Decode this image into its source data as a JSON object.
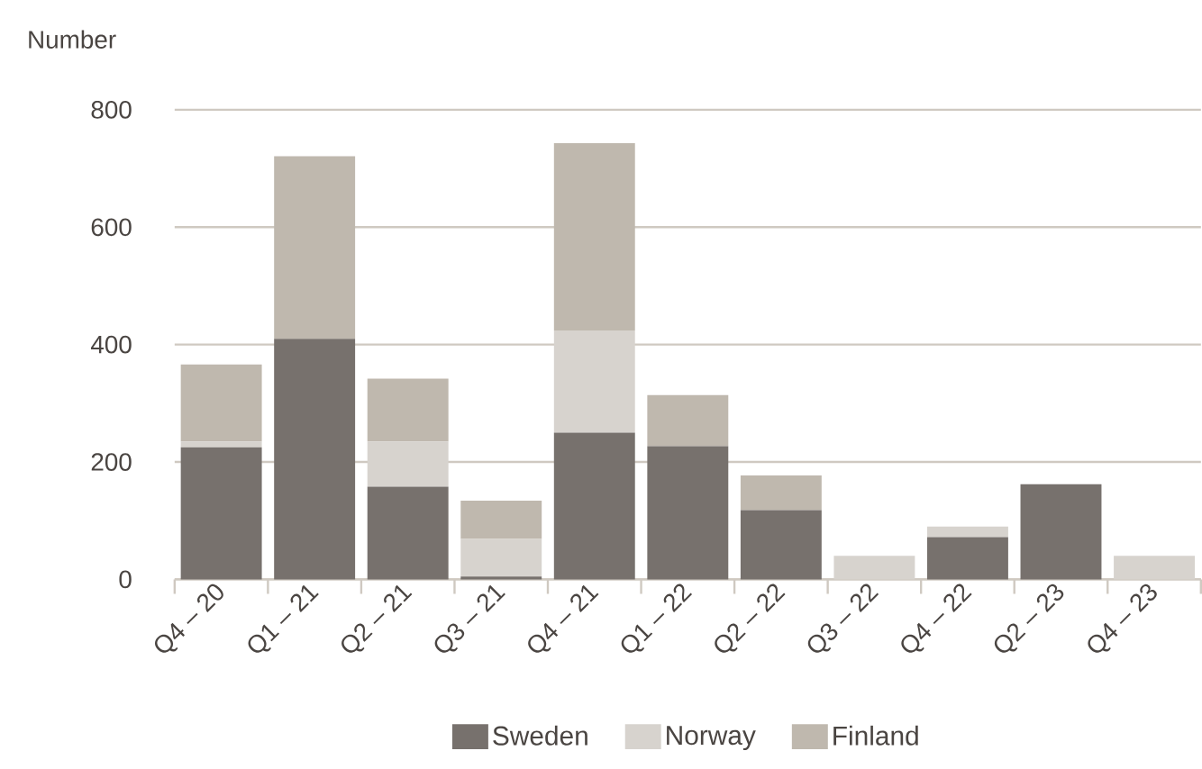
{
  "chart_data": {
    "type": "bar",
    "stacked": true,
    "ylabel": "Number",
    "categories": [
      "Q4 – 20",
      "Q1 – 21",
      "Q2 – 21",
      "Q3 – 21",
      "Q4 – 21",
      "Q1 – 22",
      "Q2 – 22",
      "Q3 – 22",
      "Q4 – 22",
      "Q2 – 23",
      "Q4 – 23"
    ],
    "series": [
      {
        "name": "Sweden",
        "color": "#77716d",
        "values": [
          225,
          410,
          158,
          5,
          250,
          227,
          118,
          0,
          72,
          162,
          0
        ]
      },
      {
        "name": "Norway",
        "color": "#d7d3ce",
        "values": [
          10,
          0,
          77,
          64,
          174,
          0,
          0,
          40,
          18,
          0,
          40
        ]
      },
      {
        "name": "Finland",
        "color": "#bfb8ae",
        "values": [
          131,
          311,
          107,
          65,
          319,
          87,
          59,
          0,
          0,
          0,
          0
        ]
      }
    ],
    "ylim": [
      0,
      800
    ],
    "yticks": [
      0,
      200,
      400,
      600,
      800
    ],
    "grid": "y",
    "legend": "bottom"
  }
}
